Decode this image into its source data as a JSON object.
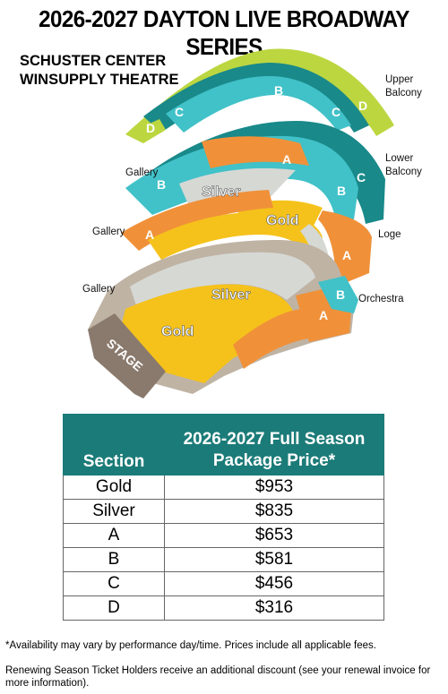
{
  "title": "2026-2027 DAYTON LIVE BROADWAY SERIES",
  "venue": {
    "line1": "SCHUSTER CENTER",
    "line2": "WINSUPPLY THEATRE"
  },
  "map": {
    "levels": {
      "upper_balcony": [
        "Upper",
        "Balcony"
      ],
      "lower_balcony": [
        "Lower",
        "Balcony"
      ],
      "loge": "Loge",
      "orchestra": "Orchestra",
      "gallery": "Gallery"
    },
    "section_labels": {
      "gold": "Gold",
      "silver": "Silver",
      "a": "A",
      "b": "B",
      "c": "C",
      "d": "D"
    },
    "stage": "STAGE",
    "colors": {
      "gold": "#f5c21b",
      "silver": "#d6d8d4",
      "a": "#f0913a",
      "b": "#41c1c8",
      "c": "#19898a",
      "d": "#bcd640",
      "stage": "#8a7a6d",
      "header": "#1b7b78"
    }
  },
  "table": {
    "header_section": "Section",
    "header_price": [
      "2026-2027 Full Season",
      "Package Price*"
    ],
    "rows": [
      {
        "section": "Gold",
        "price": "$953"
      },
      {
        "section": "Silver",
        "price": "$835"
      },
      {
        "section": "A",
        "price": "$653"
      },
      {
        "section": "B",
        "price": "$581"
      },
      {
        "section": "C",
        "price": "$456"
      },
      {
        "section": "D",
        "price": "$316"
      }
    ]
  },
  "notes": {
    "availability": "*Availability may vary by performance day/time. Prices include all applicable fees.",
    "renewal": "Renewing Season Ticket Holders receive an additional discount (see your renewal invoice for more information)."
  }
}
